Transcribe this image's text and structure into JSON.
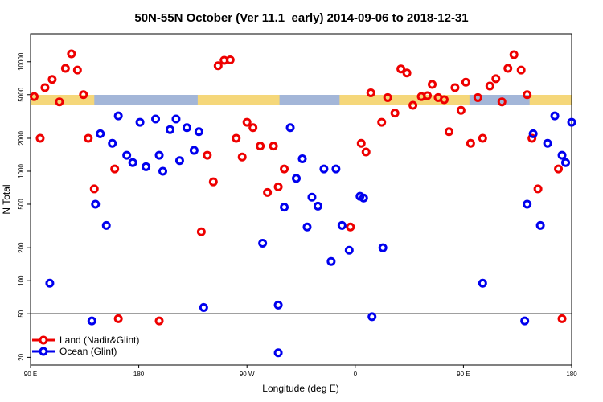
{
  "chart_data": {
    "type": "scatter",
    "title": "50N-55N October (Ver 11.1_early)   2014-09-06 to 2018-12-31",
    "xlabel": "Longitude (deg E)",
    "ylabel": "N Total",
    "x_ticks": [
      {
        "value": 90,
        "label": "90 E"
      },
      {
        "value": 180,
        "label": "180"
      },
      {
        "value": 270,
        "label": "90 W"
      },
      {
        "value": 360,
        "label": "0"
      },
      {
        "value": 450,
        "label": "90 E"
      },
      {
        "value": 540,
        "label": "180"
      }
    ],
    "xlim": [
      90,
      540
    ],
    "y_scale": "log",
    "ylim": [
      17,
      18000
    ],
    "y_ticks": [
      20,
      50,
      100,
      200,
      500,
      1000,
      2000,
      5000,
      10000
    ],
    "reference_line": 50,
    "land_band": {
      "colors": {
        "land": "#f5d77a",
        "ocean": "#a3b6d8"
      },
      "land_segments": [
        [
          90,
          143
        ],
        [
          229,
          297
        ],
        [
          347,
          455
        ],
        [
          505,
          540
        ]
      ]
    },
    "legend_position": "bottom-left",
    "series": [
      {
        "name": "Land (Nadir&Glint)",
        "color": "#ee0000",
        "points": [
          [
            93,
            4800
          ],
          [
            98,
            2000
          ],
          [
            102,
            5800
          ],
          [
            108,
            6900
          ],
          [
            114,
            4300
          ],
          [
            119,
            8700
          ],
          [
            124,
            11800
          ],
          [
            129,
            8400
          ],
          [
            134,
            5000
          ],
          [
            138,
            2000
          ],
          [
            143,
            690
          ],
          [
            160,
            1050
          ],
          [
            163,
            45
          ],
          [
            197,
            43
          ],
          [
            232,
            280
          ],
          [
            237,
            1400
          ],
          [
            242,
            800
          ],
          [
            246,
            9200
          ],
          [
            251,
            10300
          ],
          [
            256,
            10400
          ],
          [
            261,
            2000
          ],
          [
            266,
            1350
          ],
          [
            270,
            2800
          ],
          [
            275,
            2500
          ],
          [
            281,
            1700
          ],
          [
            287,
            640
          ],
          [
            292,
            1700
          ],
          [
            296,
            720
          ],
          [
            301,
            1050
          ],
          [
            356,
            310
          ],
          [
            365,
            1800
          ],
          [
            369,
            1500
          ],
          [
            373,
            5200
          ],
          [
            382,
            2800
          ],
          [
            387,
            4700
          ],
          [
            393,
            3400
          ],
          [
            398,
            8600
          ],
          [
            403,
            7900
          ],
          [
            408,
            4000
          ],
          [
            415,
            4800
          ],
          [
            420,
            4900
          ],
          [
            424,
            6200
          ],
          [
            429,
            4700
          ],
          [
            434,
            4500
          ],
          [
            438,
            2300
          ],
          [
            443,
            5800
          ],
          [
            448,
            3600
          ],
          [
            452,
            6500
          ],
          [
            456,
            1800
          ],
          [
            462,
            4700
          ],
          [
            466,
            2000
          ],
          [
            472,
            6000
          ],
          [
            477,
            7000
          ],
          [
            482,
            4300
          ],
          [
            487,
            8700
          ],
          [
            492,
            11600
          ],
          [
            498,
            8400
          ],
          [
            503,
            5000
          ],
          [
            507,
            2000
          ],
          [
            512,
            690
          ],
          [
            529,
            1050
          ],
          [
            532,
            45
          ]
        ]
      },
      {
        "name": "Ocean (Glint)",
        "color": "#0000ee",
        "points": [
          [
            106,
            95
          ],
          [
            141,
            43
          ],
          [
            144,
            500
          ],
          [
            148,
            2200
          ],
          [
            153,
            320
          ],
          [
            158,
            1800
          ],
          [
            163,
            3200
          ],
          [
            170,
            1400
          ],
          [
            175,
            1200
          ],
          [
            181,
            2800
          ],
          [
            186,
            1100
          ],
          [
            194,
            3000
          ],
          [
            197,
            1400
          ],
          [
            200,
            1000
          ],
          [
            206,
            2400
          ],
          [
            211,
            3000
          ],
          [
            214,
            1250
          ],
          [
            220,
            2500
          ],
          [
            226,
            1550
          ],
          [
            230,
            2300
          ],
          [
            234,
            57
          ],
          [
            283,
            220
          ],
          [
            296,
            60
          ],
          [
            296,
            22
          ],
          [
            301,
            470
          ],
          [
            306,
            2500
          ],
          [
            311,
            860
          ],
          [
            316,
            1300
          ],
          [
            320,
            310
          ],
          [
            324,
            580
          ],
          [
            329,
            480
          ],
          [
            334,
            1050
          ],
          [
            340,
            150
          ],
          [
            344,
            1050
          ],
          [
            349,
            320
          ],
          [
            355,
            190
          ],
          [
            364,
            590
          ],
          [
            367,
            570
          ],
          [
            374,
            47
          ],
          [
            383,
            200
          ],
          [
            466,
            95
          ],
          [
            501,
            43
          ],
          [
            503,
            500
          ],
          [
            508,
            2200
          ],
          [
            514,
            320
          ],
          [
            520,
            1800
          ],
          [
            526,
            3200
          ],
          [
            532,
            1400
          ],
          [
            535,
            1200
          ],
          [
            540,
            2800
          ]
        ]
      }
    ]
  }
}
